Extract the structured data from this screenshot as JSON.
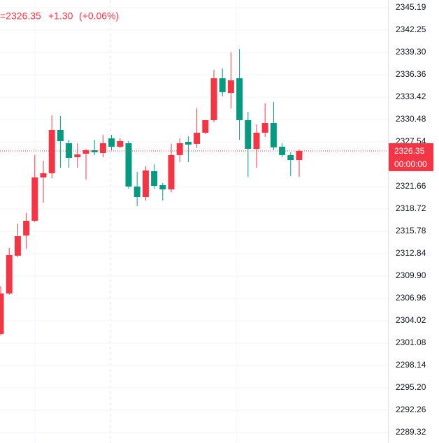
{
  "chart_data": {
    "type": "candlestick",
    "header": {
      "price": "=2326.35",
      "change": "+1.30",
      "change_pct": "(+0.06%)"
    },
    "last_price": 2326.35,
    "countdown": "00:00:00",
    "up_color": "#f23645",
    "down_color": "#089981",
    "grid": true,
    "ylim": [
      2287.94,
      2346.19
    ],
    "yticks": [
      2345.19,
      2342.25,
      {
        "value": 2339.3,
        "label": "2339.30"
      },
      2336.36,
      2333.42,
      2330.48,
      2327.54,
      2321.66,
      2318.72,
      2315.78,
      2312.84,
      {
        "value": 2309.9,
        "label": "2309.90"
      },
      2306.96,
      2304.02,
      2301.08,
      2298.14,
      {
        "value": 2295.2,
        "label": "2295.20"
      },
      2292.26,
      2289.32
    ],
    "open": [
      2302.28,
      2307.6,
      2312.57,
      2315.23,
      2317.16,
      2322.86,
      2323.41,
      2329.1,
      2327.36,
      2325.52,
      2325.98,
      2326.44,
      2326.07,
      2328.0,
      2326.9,
      2327.36,
      2321.66,
      2320.28,
      2323.68,
      2321.85,
      2321.29,
      2325.8,
      2327.54,
      2327.27,
      2328.74,
      2330.39,
      2335.9,
      2333.97,
      2335.9,
      2330.39,
      2326.62,
      2328.74,
      2330.02,
      2326.9,
      2325.8,
      2325.15
    ],
    "high": [
      2308.52,
      2313.58,
      2316.79,
      2318.17,
      2325.8,
      2325.06,
      2331.03,
      2330.94,
      2327.82,
      2327.36,
      2326.62,
      2327.82,
      2328.46,
      2328.46,
      2328.0,
      2327.63,
      2323.59,
      2324.33,
      2324.6,
      2322.12,
      2327.27,
      2328.0,
      2328.28,
      2331.95,
      2330.39,
      2337.01,
      2337.19,
      2339.3,
      2339.76,
      2331.49,
      2329.84,
      2332.6,
      2332.78,
      2327.36,
      2326.16,
      2326.53
    ],
    "low": [
      2302.09,
      2307.42,
      2312.38,
      2313.48,
      2316.98,
      2319.55,
      2322.76,
      2324.14,
      2324.14,
      2324.14,
      2322.58,
      2325.8,
      2325.52,
      2326.44,
      2326.72,
      2321.39,
      2319.09,
      2319.82,
      2321.39,
      2319.82,
      2320.93,
      2324.88,
      2324.88,
      2326.72,
      2328.55,
      2330.12,
      2333.51,
      2331.95,
      2327.82,
      2322.95,
      2324.14,
      2328.19,
      2326.44,
      2325.52,
      2323.04,
      2322.95
    ],
    "close": [
      2307.6,
      2312.66,
      2315.14,
      2317.16,
      2322.86,
      2323.41,
      2329.1,
      2327.63,
      2325.43,
      2325.89,
      2326.44,
      2326.16,
      2327.36,
      2326.9,
      2327.63,
      2321.66,
      2320.28,
      2323.78,
      2321.75,
      2321.29,
      2325.8,
      2327.36,
      2327.18,
      2328.74,
      2330.39,
      2335.9,
      2334.07,
      2335.63,
      2330.39,
      2326.62,
      2328.74,
      2330.02,
      2326.81,
      2325.8,
      2325.15,
      2326.35
    ]
  }
}
